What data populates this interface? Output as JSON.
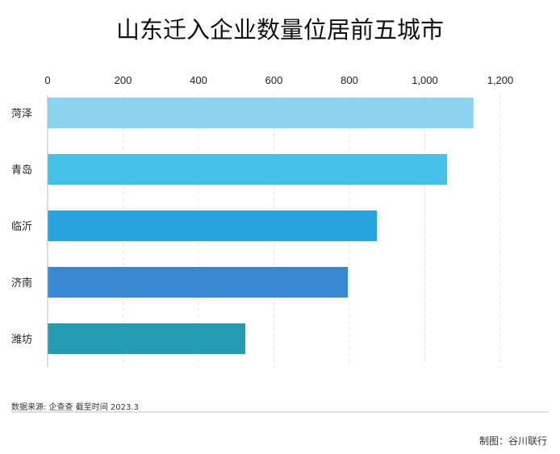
{
  "chart_data": {
    "type": "bar",
    "orientation": "horizontal",
    "title": "山东迁入企业数量位居前五城市",
    "categories": [
      "菏泽",
      "青岛",
      "临沂",
      "济南",
      "潍坊"
    ],
    "values": [
      1129,
      1059,
      873,
      796,
      524
    ],
    "colors": [
      "#8dd3f1",
      "#45c1e9",
      "#27a4de",
      "#3a88d2",
      "#269cb3"
    ],
    "xlim": [
      0,
      1200
    ],
    "xticks": [
      0,
      200,
      400,
      600,
      800,
      1000,
      1200
    ],
    "xtick_labels": [
      "0",
      "200",
      "400",
      "600",
      "800",
      "1,000",
      "1,200"
    ],
    "grid": true,
    "xlabel": "",
    "ylabel": ""
  },
  "footer": {
    "source": "数据来源: 企查查 截至时间 2023.3",
    "credit": "制图：谷川联行"
  }
}
